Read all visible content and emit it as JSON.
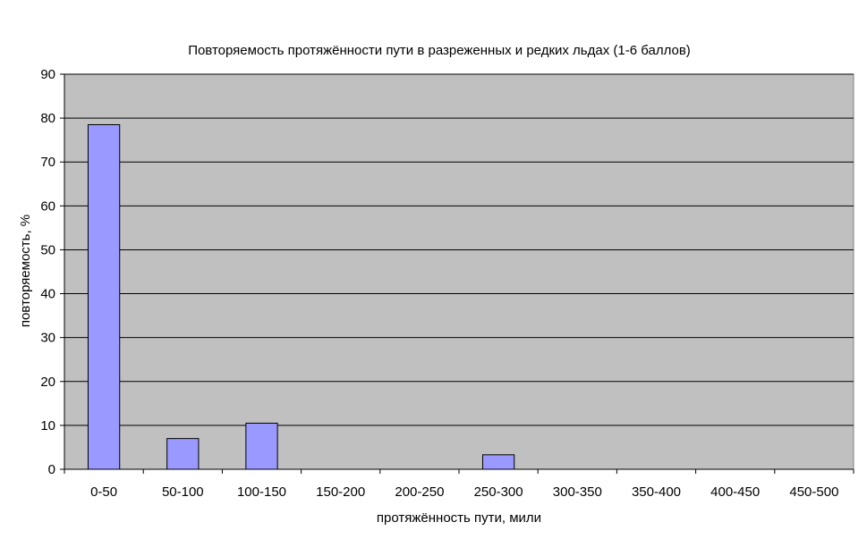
{
  "chart_data": {
    "type": "bar",
    "title": "Повторяемость протяжённости пути в разреженных и редких льдах (1-6 баллов)",
    "xlabel": "протяжённость пути, мили",
    "ylabel": "повторяемость, %",
    "categories": [
      "0-50",
      "50-100",
      "100-150",
      "150-200",
      "200-250",
      "250-300",
      "300-350",
      "350-400",
      "400-450",
      "450-500"
    ],
    "values": [
      78.5,
      7,
      10.5,
      0,
      0,
      3.3,
      0,
      0,
      0,
      0
    ],
    "ylim": [
      0,
      90
    ],
    "yticks": [
      0,
      10,
      20,
      30,
      40,
      50,
      60,
      70,
      80,
      90
    ],
    "grid": true,
    "colors": {
      "bar_fill": "#9999ff",
      "bar_stroke": "#000000",
      "plot_bg": "#c0c0c0",
      "grid": "#000000"
    }
  }
}
